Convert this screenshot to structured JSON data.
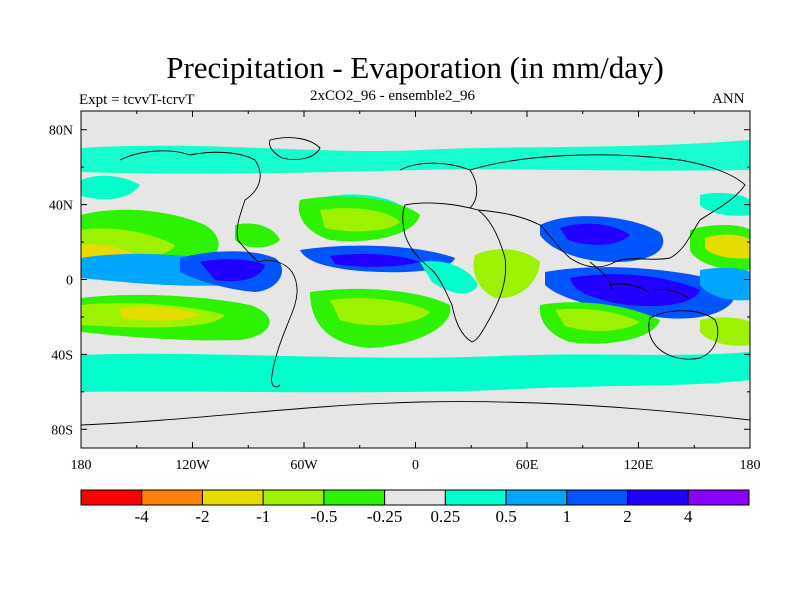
{
  "title": "Precipitation - Evaporation (in mm/day)",
  "subtitle": "2xCO2_96 - ensemble2_96",
  "expt": "Expt = tcvvT-tcrvT",
  "season": "ANN",
  "axes": {
    "lon_labels": [
      "180",
      "120W",
      "60W",
      "0",
      "60E",
      "120E",
      "180"
    ],
    "lat_labels": [
      "80N",
      "40N",
      "0",
      "40S",
      "80S"
    ]
  },
  "colorbar": {
    "colors": [
      "#ff0000",
      "#ff8000",
      "#e6dc00",
      "#9cf200",
      "#2ef200",
      "#e6e6e6",
      "#00ffcc",
      "#00a6ff",
      "#0055ff",
      "#2200ff",
      "#8800ff"
    ],
    "labels": [
      "-4",
      "-2",
      "-1",
      "-0.5",
      "-0.25",
      "0.25",
      "0.5",
      "1",
      "2",
      "4"
    ]
  },
  "colors": {
    "neutral": "#e6e6e6",
    "teal": "#00ffcc",
    "lime": "#9cf200",
    "green": "#2ef200",
    "yellow": "#e6dc00",
    "lightblue": "#00a6ff",
    "blue": "#0055ff",
    "darkblue": "#2200ff"
  }
}
